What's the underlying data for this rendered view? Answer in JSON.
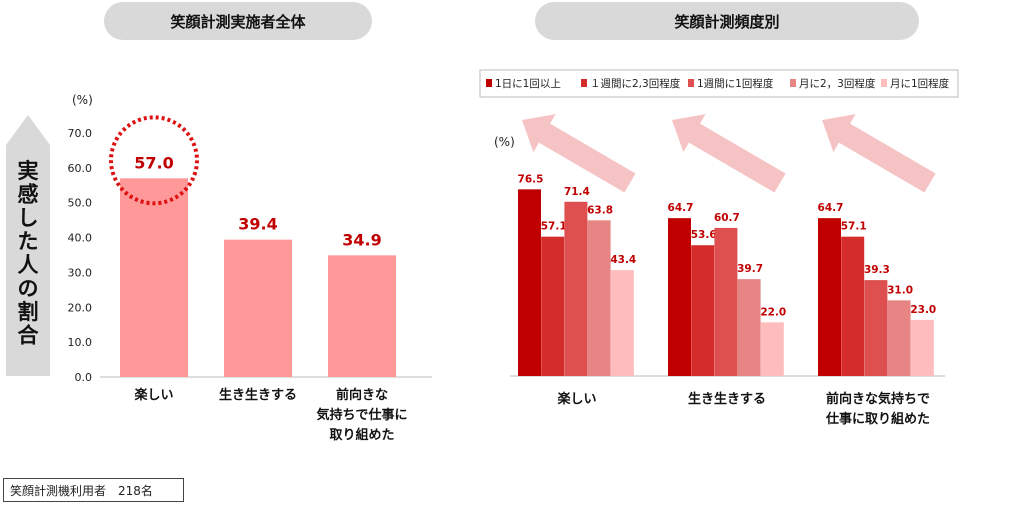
{
  "left_panel": {
    "title": "笑顔計測実施者全体",
    "side_label": "実感した人の割合"
  },
  "right_panel": {
    "title": "笑顔計測頻度別"
  },
  "footer": {
    "note": "笑顔計測機利用者　218名"
  },
  "colors": {
    "left_bar": "#ff9999",
    "highlight_circle": "#dd1111",
    "arrow_fill": "#f6c3c5",
    "side_arrow": "#d9d9d9",
    "series": [
      "#c00000",
      "#d42b2b",
      "#de4f4f",
      "#e78585",
      "#ffbcbc"
    ]
  },
  "chart_data": [
    {
      "type": "bar",
      "title": "笑顔計測実施者全体",
      "unit_label": "(%)",
      "ylabel": "実感した人の割合",
      "categories": [
        "楽しい",
        "生き生きする",
        "前向きな気持ちで仕事に取り組めた"
      ],
      "category_lines": [
        [
          "楽しい"
        ],
        [
          "生き生きする"
        ],
        [
          "前向きな",
          "気持ちで仕事に",
          "取り組めた"
        ]
      ],
      "values": [
        57.0,
        39.4,
        34.9
      ],
      "value_labels": [
        "57.0",
        "39.4",
        "34.9"
      ],
      "ylim": [
        0,
        70
      ],
      "yticks": [
        "0.0",
        "10.0",
        "20.0",
        "30.0",
        "40.0",
        "50.0",
        "60.0",
        "70.0"
      ],
      "grid": false,
      "highlight_index": 0
    },
    {
      "type": "bar",
      "title": "笑顔計測頻度別",
      "unit_label": "(%)",
      "categories": [
        "楽しい",
        "生き生きする",
        "前向きな気持ちで仕事に取り組めた"
      ],
      "category_lines": [
        [
          "楽しい"
        ],
        [
          "生き生きする"
        ],
        [
          "前向きな気持ちで",
          "仕事に取り組めた"
        ]
      ],
      "legend_position": "top",
      "series": [
        {
          "name": "1日に1回以上",
          "values": [
            76.5,
            64.7,
            64.7
          ]
        },
        {
          "name": "１週間に2,3回程度",
          "values": [
            57.1,
            53.6,
            57.1
          ]
        },
        {
          "name": "1週間に1回程度",
          "values": [
            71.4,
            60.7,
            39.3
          ]
        },
        {
          "name": "月に2，3回程度",
          "values": [
            63.8,
            39.7,
            31.0
          ]
        },
        {
          "name": "月に1回程度",
          "values": [
            43.4,
            22.0,
            23.0
          ]
        }
      ],
      "ylim": [
        0,
        100
      ],
      "grid": false
    }
  ]
}
